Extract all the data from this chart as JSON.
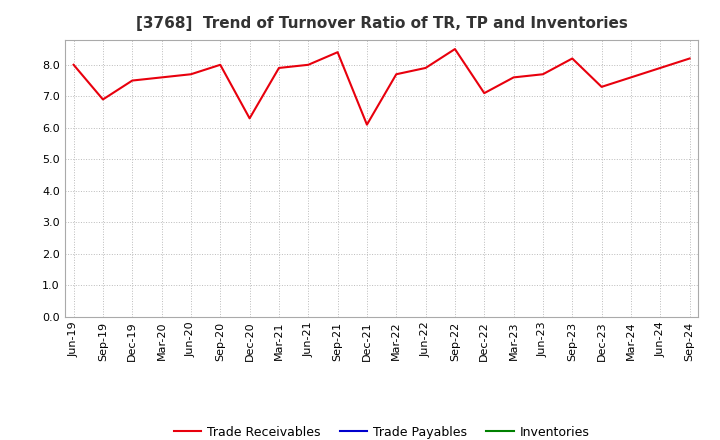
{
  "title": "[3768]  Trend of Turnover Ratio of TR, TP and Inventories",
  "x_labels": [
    "Jun-19",
    "Sep-19",
    "Dec-19",
    "Mar-20",
    "Jun-20",
    "Sep-20",
    "Dec-20",
    "Mar-21",
    "Jun-21",
    "Sep-21",
    "Dec-21",
    "Mar-22",
    "Jun-22",
    "Sep-22",
    "Dec-22",
    "Mar-23",
    "Jun-23",
    "Sep-23",
    "Dec-23",
    "Mar-24",
    "Jun-24",
    "Sep-24"
  ],
  "trade_receivables": [
    8.0,
    6.9,
    7.5,
    7.6,
    7.7,
    8.0,
    6.3,
    7.9,
    8.0,
    8.4,
    6.1,
    7.7,
    7.9,
    8.5,
    7.1,
    7.6,
    7.7,
    8.2,
    7.3,
    7.6,
    7.9,
    8.2
  ],
  "trade_payables": [
    null,
    null,
    null,
    null,
    null,
    null,
    null,
    null,
    null,
    null,
    null,
    null,
    null,
    null,
    null,
    null,
    null,
    null,
    null,
    null,
    null,
    null
  ],
  "inventories": [
    null,
    null,
    null,
    null,
    null,
    null,
    null,
    null,
    null,
    null,
    null,
    null,
    null,
    null,
    null,
    null,
    null,
    null,
    null,
    null,
    null,
    null
  ],
  "tr_color": "#e8000d",
  "tp_color": "#0000cd",
  "inv_color": "#008000",
  "background_color": "#ffffff",
  "plot_bg_color": "#ffffff",
  "grid_color": "#bbbbbb",
  "ylim": [
    0.0,
    8.8
  ],
  "yticks": [
    0.0,
    1.0,
    2.0,
    3.0,
    4.0,
    5.0,
    6.0,
    7.0,
    8.0
  ],
  "legend_labels": [
    "Trade Receivables",
    "Trade Payables",
    "Inventories"
  ],
  "title_fontsize": 11,
  "axis_fontsize": 8,
  "legend_fontsize": 9
}
